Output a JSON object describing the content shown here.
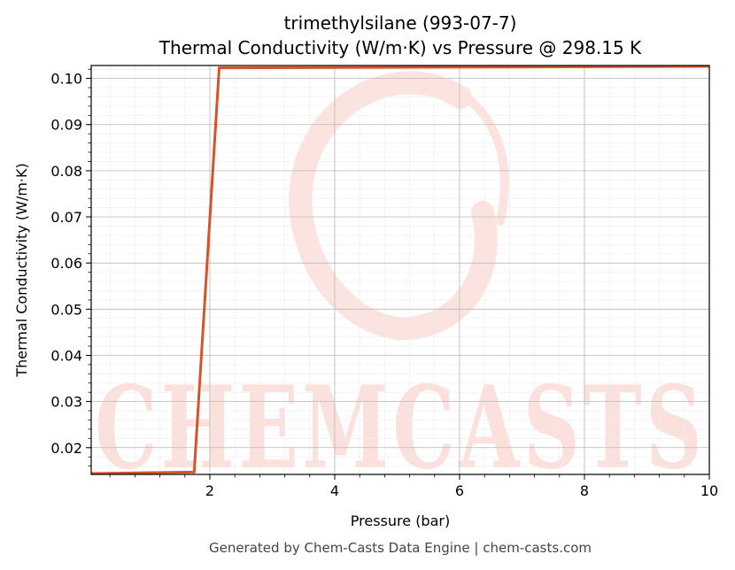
{
  "chart_data": {
    "type": "line",
    "title": "trimethylsilane (993-07-7)",
    "subtitle": "Thermal Conductivity (W/m·K) vs Pressure @ 298.15 K",
    "xlabel": "Pressure (bar)",
    "ylabel": "Thermal Conductivity (W/m·K)",
    "xlim": [
      0.1,
      10
    ],
    "ylim": [
      0.0142,
      0.1028
    ],
    "x_ticks": [
      2,
      4,
      6,
      8,
      10
    ],
    "x_tick_labels": [
      "2",
      "4",
      "6",
      "8",
      "10"
    ],
    "y_ticks": [
      0.02,
      0.03,
      0.04,
      0.05,
      0.06,
      0.07,
      0.08,
      0.09,
      0.1
    ],
    "y_tick_labels": [
      "0.02",
      "0.03",
      "0.04",
      "0.05",
      "0.06",
      "0.07",
      "0.08",
      "0.09",
      "0.10"
    ],
    "grid": true,
    "series": [
      {
        "color": "#d4532b",
        "x": [
          0.1,
          1.75,
          2.15,
          10
        ],
        "y": [
          0.0144,
          0.0147,
          0.1023,
          0.1026
        ]
      }
    ]
  },
  "watermark": {
    "text": "CHEMCASTS",
    "color": "#fbe0dc"
  },
  "footer": "Generated by Chem-Casts Data Engine | chem-casts.com"
}
